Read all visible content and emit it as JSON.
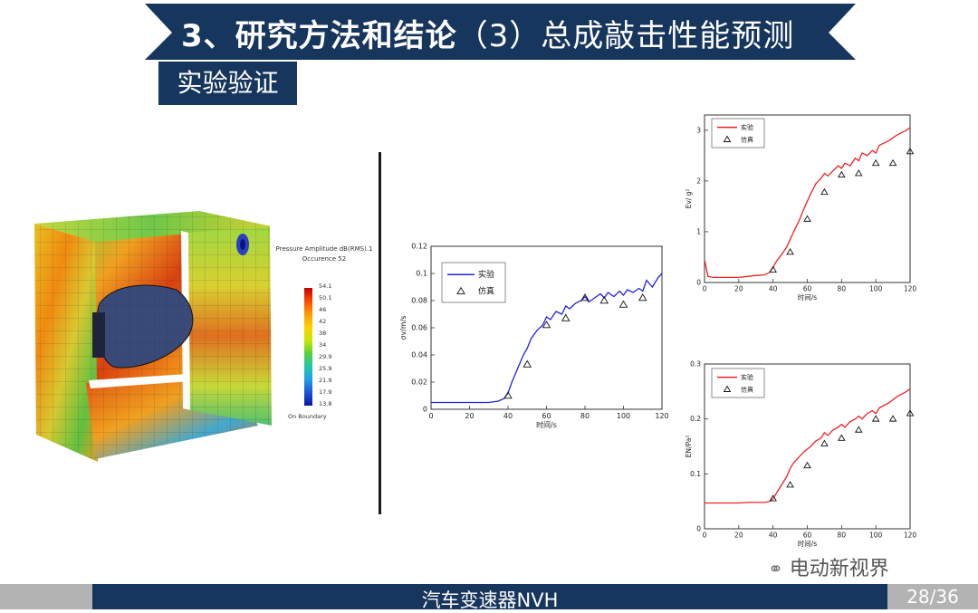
{
  "header": {
    "title_bold": "3、研究方法和结论",
    "title_rest": "（3）总成敲击性能预测"
  },
  "subtitle": "实验验证",
  "sim": {
    "legend_title_1": "Pressure Amplitude dB(RMS).1",
    "legend_title_2": "Occurence 52",
    "scale": [
      "54.1",
      "50.1",
      "46",
      "42",
      "38",
      "34",
      "29.9",
      "25.9",
      "21.9",
      "17.9",
      "13.8"
    ],
    "boundary": "On Boundary"
  },
  "chart_data": [
    {
      "type": "line",
      "id": "sigma-v",
      "xlabel": "时间/s",
      "ylabel": "σv/m/s",
      "xlim": [
        0,
        120
      ],
      "ylim": [
        0,
        0.12
      ],
      "xticks": [
        "0",
        "20",
        "40",
        "60",
        "80",
        "100",
        "120"
      ],
      "yticks": [
        "0",
        "0.02",
        "0.04",
        "0.06",
        "0.08",
        "0.1",
        "0.12"
      ],
      "legend": [
        "实验",
        "仿真"
      ],
      "series": [
        {
          "name": "实验",
          "style": "line",
          "color": "#2222dd",
          "x": [
            0,
            5,
            10,
            15,
            20,
            25,
            30,
            35,
            38,
            40,
            42,
            45,
            48,
            50,
            52,
            55,
            58,
            60,
            62,
            65,
            68,
            70,
            72,
            75,
            78,
            80,
            82,
            85,
            88,
            90,
            92,
            95,
            98,
            100,
            102,
            105,
            108,
            110,
            112,
            115,
            118,
            120
          ],
          "y": [
            0.005,
            0.005,
            0.005,
            0.005,
            0.005,
            0.005,
            0.005,
            0.006,
            0.008,
            0.012,
            0.02,
            0.03,
            0.04,
            0.045,
            0.052,
            0.058,
            0.062,
            0.068,
            0.066,
            0.072,
            0.07,
            0.076,
            0.074,
            0.078,
            0.08,
            0.083,
            0.079,
            0.082,
            0.085,
            0.082,
            0.086,
            0.083,
            0.087,
            0.084,
            0.088,
            0.086,
            0.089,
            0.087,
            0.095,
            0.09,
            0.097,
            0.1
          ]
        },
        {
          "name": "仿真",
          "style": "triangle",
          "x": [
            40,
            50,
            60,
            70,
            80,
            90,
            100,
            110
          ],
          "y": [
            0.01,
            0.033,
            0.062,
            0.067,
            0.082,
            0.08,
            0.077,
            0.082
          ]
        }
      ]
    },
    {
      "type": "line",
      "id": "ev",
      "xlabel": "时间/s",
      "ylabel": "Ev/ g²",
      "xlim": [
        0,
        120
      ],
      "ylim": [
        0,
        3.3
      ],
      "xticks": [
        "0",
        "20",
        "40",
        "60",
        "80",
        "100",
        "120"
      ],
      "yticks": [
        "0",
        "1",
        "2",
        "3"
      ],
      "legend": [
        "实验",
        "仿真"
      ],
      "series": [
        {
          "name": "实验",
          "style": "line",
          "color": "#ee2222",
          "x": [
            0,
            2,
            5,
            10,
            15,
            20,
            25,
            30,
            35,
            38,
            40,
            42,
            45,
            48,
            50,
            52,
            55,
            58,
            60,
            62,
            65,
            68,
            70,
            72,
            75,
            78,
            80,
            82,
            85,
            88,
            90,
            92,
            95,
            98,
            100,
            102,
            105,
            108,
            110,
            112,
            115,
            118,
            120
          ],
          "y": [
            0.45,
            0.12,
            0.1,
            0.1,
            0.1,
            0.1,
            0.12,
            0.14,
            0.15,
            0.2,
            0.3,
            0.42,
            0.55,
            0.7,
            0.85,
            1.0,
            1.2,
            1.45,
            1.6,
            1.75,
            1.95,
            2.05,
            2.15,
            2.1,
            2.2,
            2.3,
            2.25,
            2.35,
            2.3,
            2.45,
            2.4,
            2.55,
            2.5,
            2.6,
            2.55,
            2.7,
            2.75,
            2.8,
            2.85,
            2.9,
            2.95,
            3.0,
            3.05
          ]
        },
        {
          "name": "仿真",
          "style": "triangle",
          "x": [
            40,
            50,
            60,
            70,
            80,
            90,
            100,
            110,
            120
          ],
          "y": [
            0.25,
            0.6,
            1.25,
            1.78,
            2.12,
            2.15,
            2.35,
            2.35,
            2.58
          ]
        }
      ]
    },
    {
      "type": "line",
      "id": "en",
      "xlabel": "时间/s",
      "ylabel": "EN/Pa²",
      "xlim": [
        0,
        120
      ],
      "ylim": [
        0,
        0.3
      ],
      "xticks": [
        "0",
        "20",
        "40",
        "60",
        "80",
        "100",
        "120"
      ],
      "yticks": [
        "0",
        "0.1",
        "0.2",
        "0.3"
      ],
      "legend": [
        "实验",
        "仿真"
      ],
      "series": [
        {
          "name": "实验",
          "style": "line",
          "color": "#ee2222",
          "x": [
            0,
            5,
            10,
            15,
            20,
            25,
            30,
            35,
            38,
            40,
            42,
            45,
            48,
            50,
            52,
            55,
            58,
            60,
            62,
            65,
            68,
            70,
            72,
            75,
            78,
            80,
            82,
            85,
            88,
            90,
            92,
            95,
            98,
            100,
            102,
            105,
            108,
            110,
            112,
            115,
            118,
            120
          ],
          "y": [
            0.047,
            0.047,
            0.047,
            0.047,
            0.047,
            0.048,
            0.048,
            0.048,
            0.05,
            0.055,
            0.065,
            0.08,
            0.095,
            0.11,
            0.12,
            0.13,
            0.14,
            0.145,
            0.15,
            0.16,
            0.165,
            0.175,
            0.17,
            0.18,
            0.185,
            0.19,
            0.185,
            0.195,
            0.2,
            0.205,
            0.2,
            0.21,
            0.215,
            0.21,
            0.22,
            0.225,
            0.23,
            0.235,
            0.24,
            0.245,
            0.25,
            0.255
          ]
        },
        {
          "name": "仿真",
          "style": "triangle",
          "x": [
            40,
            50,
            60,
            70,
            80,
            90,
            100,
            110,
            120
          ],
          "y": [
            0.055,
            0.08,
            0.115,
            0.155,
            0.165,
            0.18,
            0.2,
            0.2,
            0.21
          ]
        }
      ]
    }
  ],
  "footer": {
    "text": "汽车变速器NVH",
    "page": "28/36",
    "watermark": "电动新视界"
  },
  "colors": {
    "navy": "#17365d",
    "gray": "#b3b3b3"
  }
}
